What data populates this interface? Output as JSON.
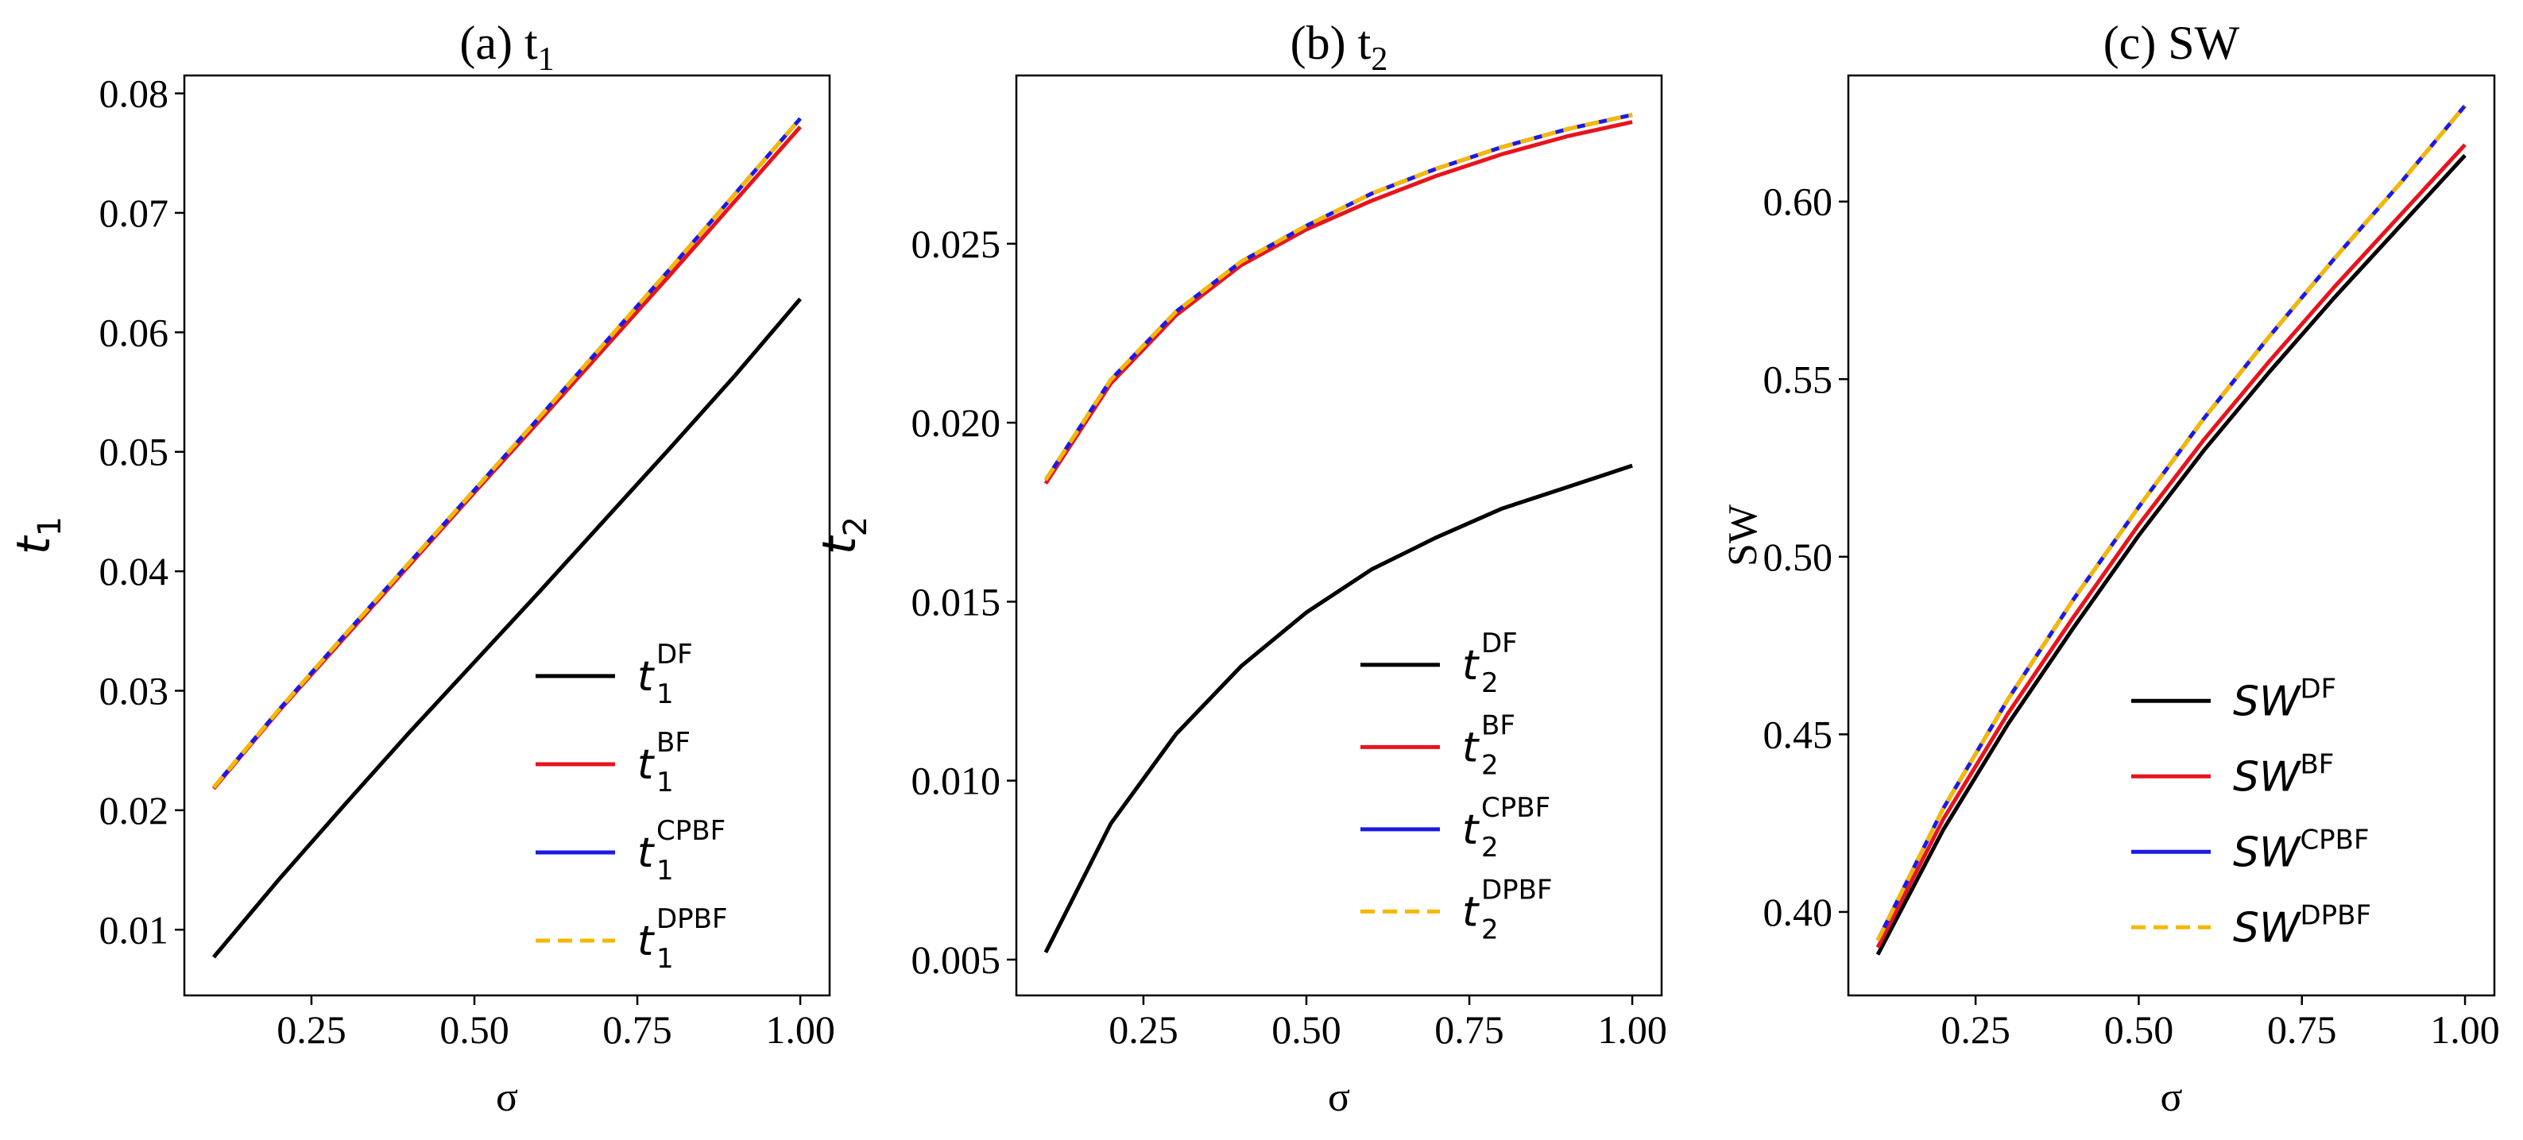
{
  "chart_data": [
    {
      "type": "line",
      "title": "(a) t",
      "title_sub": "1",
      "xlabel": "σ",
      "ylabel": "t",
      "ylabel_sub": "1",
      "ylabel_style": "math",
      "xlim": [
        0.055,
        1.045
      ],
      "ylim": [
        0.0045,
        0.0815
      ],
      "xticks": [
        0.25,
        0.5,
        0.75,
        1.0
      ],
      "xtick_labels": [
        "0.25",
        "0.50",
        "0.75",
        "1.00"
      ],
      "yticks": [
        0.01,
        0.02,
        0.03,
        0.04,
        0.05,
        0.06,
        0.07,
        0.08
      ],
      "ytick_labels": [
        "0.01",
        "0.02",
        "0.03",
        "0.04",
        "0.05",
        "0.06",
        "0.07",
        "0.08"
      ],
      "x": [
        0.1,
        0.2,
        0.3,
        0.4,
        0.5,
        0.6,
        0.7,
        0.8,
        0.9,
        1.0
      ],
      "legend_position": "lower-right",
      "series": [
        {
          "name": "DF",
          "legend_base": "t",
          "legend_sub": "1",
          "legend_sup": "DF",
          "color": "#000000",
          "dash": "",
          "values": [
            0.0077,
            0.0142,
            0.0204,
            0.0265,
            0.0324,
            0.0383,
            0.0443,
            0.0503,
            0.0564,
            0.0628
          ]
        },
        {
          "name": "BF",
          "legend_base": "t",
          "legend_sub": "1",
          "legend_sup": "BF",
          "color": "#e8141c",
          "dash": "",
          "values": [
            0.0218,
            0.0283,
            0.0344,
            0.0405,
            0.0466,
            0.0526,
            0.0587,
            0.0648,
            0.071,
            0.0772
          ]
        },
        {
          "name": "CPBF",
          "legend_base": "t",
          "legend_sub": "1",
          "legend_sup": "CPBF",
          "color": "#1a1ae6",
          "dash": "",
          "values": [
            0.0219,
            0.0284,
            0.0346,
            0.0407,
            0.0468,
            0.0529,
            0.0591,
            0.0653,
            0.0716,
            0.0779
          ]
        },
        {
          "name": "DPBF",
          "legend_base": "t",
          "legend_sub": "1",
          "legend_sup": "DPBF",
          "color": "#f5b800",
          "dash": "18,10",
          "values": [
            0.0219,
            0.0284,
            0.0346,
            0.0407,
            0.0468,
            0.0529,
            0.0591,
            0.0653,
            0.0716,
            0.0779
          ]
        }
      ]
    },
    {
      "type": "line",
      "title": "(b) t",
      "title_sub": "2",
      "xlabel": "σ",
      "ylabel": "t",
      "ylabel_sub": "2",
      "ylabel_style": "math",
      "xlim": [
        0.055,
        1.045
      ],
      "ylim": [
        0.004,
        0.0297
      ],
      "xticks": [
        0.25,
        0.5,
        0.75,
        1.0
      ],
      "xtick_labels": [
        "0.25",
        "0.50",
        "0.75",
        "1.00"
      ],
      "yticks": [
        0.005,
        0.01,
        0.015,
        0.02,
        0.025
      ],
      "ytick_labels": [
        "0.005",
        "0.010",
        "0.015",
        "0.020",
        "0.025"
      ],
      "x": [
        0.1,
        0.2,
        0.3,
        0.4,
        0.5,
        0.6,
        0.7,
        0.8,
        0.9,
        1.0
      ],
      "legend_position": "lower-right",
      "series": [
        {
          "name": "DF",
          "legend_base": "t",
          "legend_sub": "2",
          "legend_sup": "DF",
          "color": "#000000",
          "dash": "",
          "values": [
            0.0052,
            0.0088,
            0.0113,
            0.0132,
            0.0147,
            0.0159,
            0.0168,
            0.0176,
            0.0182,
            0.0188
          ]
        },
        {
          "name": "BF",
          "legend_base": "t",
          "legend_sub": "2",
          "legend_sup": "BF",
          "color": "#e8141c",
          "dash": "",
          "values": [
            0.0183,
            0.0211,
            0.023,
            0.0244,
            0.0254,
            0.0262,
            0.0269,
            0.0275,
            0.028,
            0.0284
          ]
        },
        {
          "name": "CPBF",
          "legend_base": "t",
          "legend_sub": "2",
          "legend_sup": "CPBF",
          "color": "#1a1ae6",
          "dash": "",
          "values": [
            0.0184,
            0.0212,
            0.0231,
            0.0245,
            0.0255,
            0.0264,
            0.0271,
            0.0277,
            0.0282,
            0.0286
          ]
        },
        {
          "name": "DPBF",
          "legend_base": "t",
          "legend_sub": "2",
          "legend_sup": "DPBF",
          "color": "#f5b800",
          "dash": "18,10",
          "values": [
            0.0184,
            0.0212,
            0.0231,
            0.0245,
            0.0255,
            0.0264,
            0.0271,
            0.0277,
            0.0282,
            0.0286
          ]
        }
      ]
    },
    {
      "type": "line",
      "title": "(c) SW",
      "title_sub": "",
      "xlabel": "σ",
      "ylabel": "SW",
      "ylabel_sub": "",
      "ylabel_style": "serif",
      "xlim": [
        0.055,
        1.045
      ],
      "ylim": [
        0.3765,
        0.6355
      ],
      "xticks": [
        0.25,
        0.5,
        0.75,
        1.0
      ],
      "xtick_labels": [
        "0.25",
        "0.50",
        "0.75",
        "1.00"
      ],
      "yticks": [
        0.4,
        0.45,
        0.5,
        0.55,
        0.6
      ],
      "ytick_labels": [
        "0.40",
        "0.45",
        "0.50",
        "0.55",
        "0.60"
      ],
      "x": [
        0.1,
        0.2,
        0.3,
        0.4,
        0.5,
        0.6,
        0.7,
        0.8,
        0.9,
        1.0
      ],
      "legend_position": "lower-right",
      "series": [
        {
          "name": "DF",
          "legend_base": "SW",
          "legend_sub": "",
          "legend_sup": "DF",
          "color": "#000000",
          "dash": "",
          "values": [
            0.388,
            0.423,
            0.453,
            0.48,
            0.506,
            0.53,
            0.552,
            0.573,
            0.593,
            0.613
          ]
        },
        {
          "name": "BF",
          "legend_base": "SW",
          "legend_sub": "",
          "legend_sup": "BF",
          "color": "#e8141c",
          "dash": "",
          "values": [
            0.39,
            0.426,
            0.456,
            0.483,
            0.509,
            0.533,
            0.555,
            0.576,
            0.596,
            0.616
          ]
        },
        {
          "name": "CPBF",
          "legend_base": "SW",
          "legend_sub": "",
          "legend_sup": "CPBF",
          "color": "#1a1ae6",
          "dash": "",
          "values": [
            0.392,
            0.429,
            0.46,
            0.488,
            0.514,
            0.539,
            0.562,
            0.584,
            0.605,
            0.627
          ]
        },
        {
          "name": "DPBF",
          "legend_base": "SW",
          "legend_sub": "",
          "legend_sup": "DPBF",
          "color": "#f5b800",
          "dash": "18,10",
          "values": [
            0.392,
            0.429,
            0.46,
            0.488,
            0.514,
            0.539,
            0.562,
            0.584,
            0.605,
            0.627
          ]
        }
      ]
    }
  ]
}
